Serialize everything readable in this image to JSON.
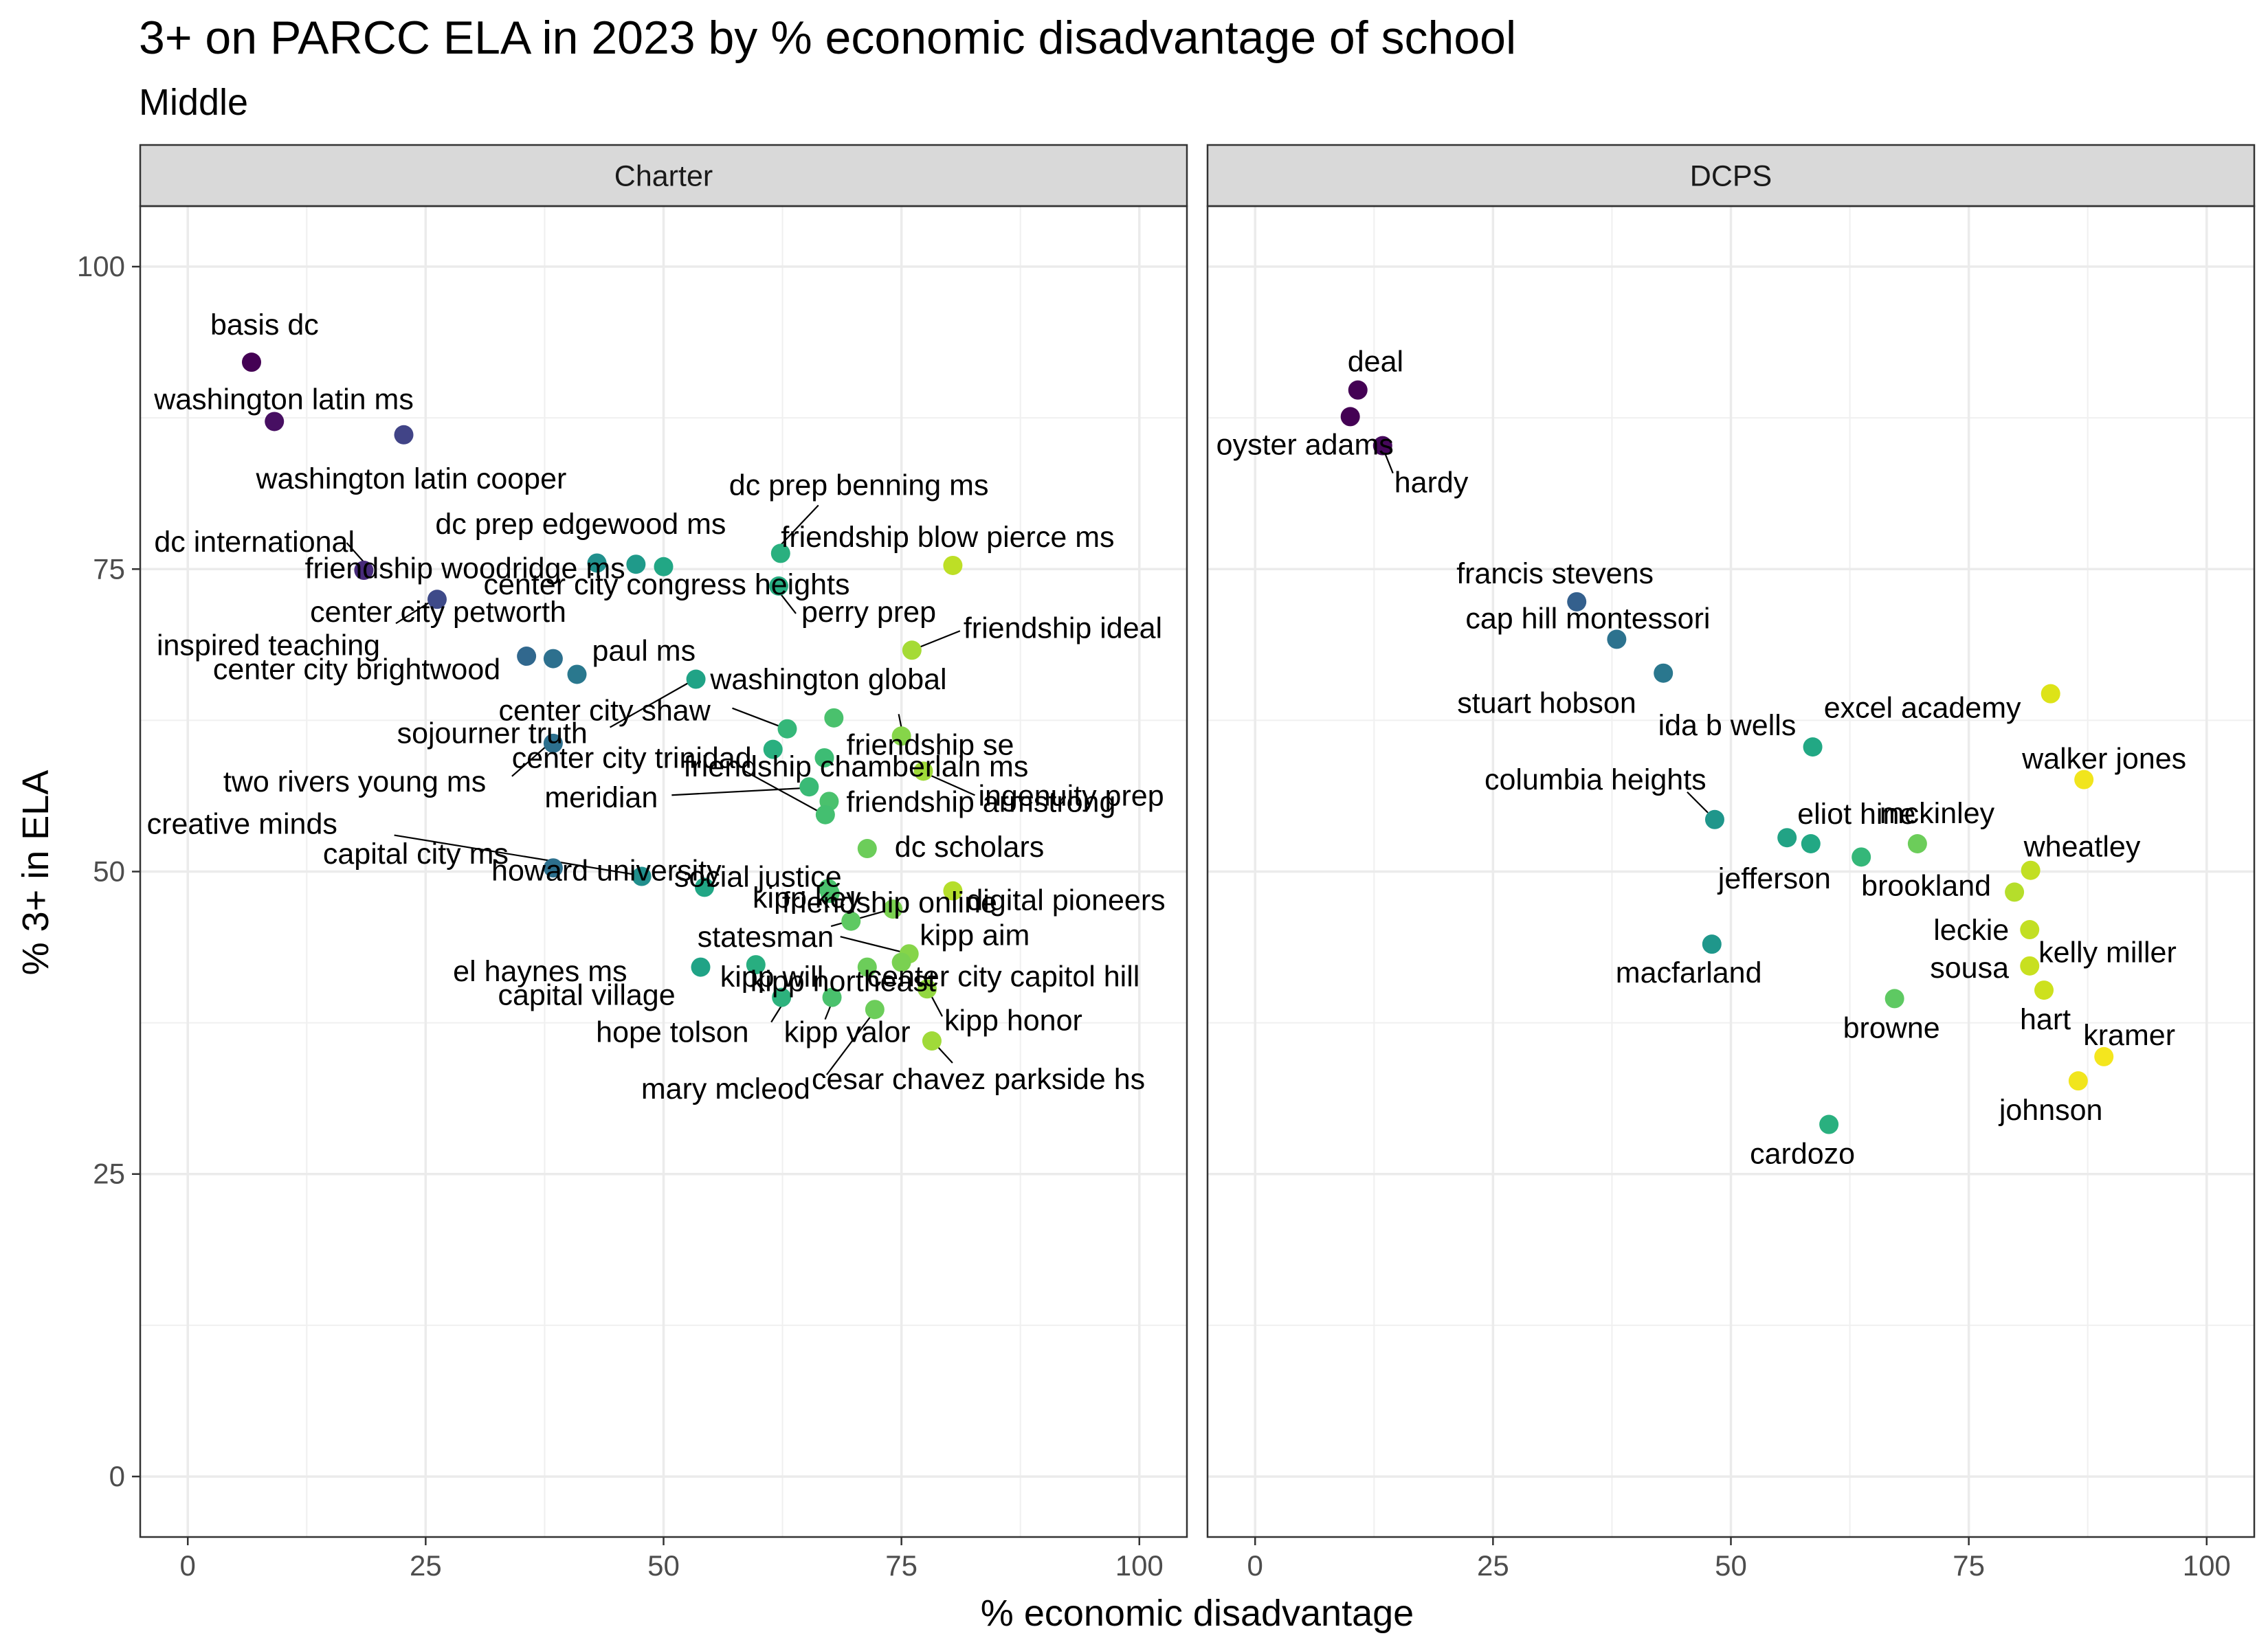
{
  "chart_data": {
    "type": "scatter",
    "title": "3+ on PARCC ELA in 2023 by % economic disadvantage of school",
    "subtitle": "Middle",
    "xlabel": "% economic disadvantage",
    "ylabel": "% 3+ in ELA",
    "xlim": [
      -5,
      105
    ],
    "ylim": [
      -5,
      105
    ],
    "x_ticks": [
      0,
      25,
      50,
      75,
      100
    ],
    "y_ticks": [
      0,
      25,
      50,
      75,
      100
    ],
    "grid": true,
    "color_scale": "viridis",
    "facets": [
      {
        "name": "Charter",
        "points": [
          {
            "label": "basis dc",
            "x": 6.7,
            "y": 92.1,
            "color": "#440154"
          },
          {
            "label": "washington latin ms",
            "x": 9.1,
            "y": 87.2,
            "color": "#470f62"
          },
          {
            "label": "washington latin cooper",
            "x": 22.7,
            "y": 86.1,
            "color": "#414487"
          },
          {
            "label": "dc international",
            "x": 18.5,
            "y": 74.9,
            "color": "#472a7a"
          },
          {
            "label": "friendship woodridge ms",
            "x": 43.0,
            "y": 75.5,
            "color": "#21908d"
          },
          {
            "label": "inspired teaching",
            "x": 26.2,
            "y": 72.5,
            "color": "#3e4a89"
          },
          {
            "label": "dc prep edgewood ms",
            "x": 47.1,
            "y": 75.4,
            "color": "#1f9a8a"
          },
          {
            "label": "center city congress heights",
            "x": 50.0,
            "y": 75.2,
            "color": "#22a785"
          },
          {
            "label": "dc prep benning ms",
            "x": 62.3,
            "y": 76.3,
            "color": "#2ab07f"
          },
          {
            "label": "friendship blow pierce ms",
            "x": 80.4,
            "y": 75.3,
            "color": "#bddf26"
          },
          {
            "label": "perry prep",
            "x": 62.1,
            "y": 73.6,
            "color": "#27ad81"
          },
          {
            "label": "friendship ideal",
            "x": 76.1,
            "y": 68.3,
            "color": "#a5db36"
          },
          {
            "label": "center city petworth",
            "x": 35.6,
            "y": 67.8,
            "color": "#31688e"
          },
          {
            "label": "center city brightwood",
            "x": 38.4,
            "y": 67.6,
            "color": "#2d708e"
          },
          {
            "label": "paul ms",
            "x": 40.9,
            "y": 66.3,
            "color": "#2a788e"
          },
          {
            "label": "sojourner truth",
            "x": 53.4,
            "y": 65.9,
            "color": "#20a386"
          },
          {
            "label": "washington global",
            "x": 67.9,
            "y": 62.7,
            "color": "#4ac16d"
          },
          {
            "label": "center city shaw",
            "x": 63.0,
            "y": 61.8,
            "color": "#35b779"
          },
          {
            "label": "friendship se",
            "x": 75.0,
            "y": 61.2,
            "color": "#86d549"
          },
          {
            "label": "two rivers young ms",
            "x": 38.4,
            "y": 60.6,
            "color": "#2d708e"
          },
          {
            "label": "center city trinidad",
            "x": 61.5,
            "y": 60.1,
            "color": "#29af7f"
          },
          {
            "label": "friendship chamberlain ms",
            "x": 66.9,
            "y": 59.4,
            "color": "#3dbc74"
          },
          {
            "label": "ingenuity prep",
            "x": 77.3,
            "y": 58.3,
            "color": "#a0da39"
          },
          {
            "label": "meridian",
            "x": 65.3,
            "y": 57.0,
            "color": "#3aba76"
          },
          {
            "label": "friendship armstrong",
            "x": 67.4,
            "y": 55.8,
            "color": "#4ac16d"
          },
          {
            "label": "social justice",
            "x": 67.0,
            "y": 54.7,
            "color": "#44bf70"
          },
          {
            "label": "dc scholars",
            "x": 71.4,
            "y": 51.9,
            "color": "#6ccd5a"
          },
          {
            "label": "capital city ms",
            "x": 38.4,
            "y": 50.3,
            "color": "#2d708e"
          },
          {
            "label": "creative minds",
            "x": 47.7,
            "y": 49.6,
            "color": "#218f8d"
          },
          {
            "label": "howard university",
            "x": 54.3,
            "y": 48.7,
            "color": "#21a685"
          },
          {
            "label": "kipp key",
            "x": 67.3,
            "y": 48.6,
            "color": "#4ac16d"
          },
          {
            "label": "friendship online",
            "x": 67.5,
            "y": 48.2,
            "color": "#4ac16d"
          },
          {
            "label": "digital pioneers",
            "x": 80.4,
            "y": 48.4,
            "color": "#b5de2b"
          },
          {
            "label": "el haynes ms",
            "x": 74.1,
            "y": 46.9,
            "color": "#7ad151"
          },
          {
            "label": "kipp aim",
            "x": 69.7,
            "y": 45.9,
            "color": "#5ec962"
          },
          {
            "label": "kipp will",
            "x": 75.8,
            "y": 43.2,
            "color": "#86d549"
          },
          {
            "label": "statesman",
            "x": 59.7,
            "y": 42.3,
            "color": "#28ae80"
          },
          {
            "label": "capital village",
            "x": 53.9,
            "y": 42.1,
            "color": "#20a386"
          },
          {
            "label": "kipp northeast",
            "x": 71.4,
            "y": 42.1,
            "color": "#6ccd5a"
          },
          {
            "label": "center city capitol hill",
            "x": 75.0,
            "y": 42.5,
            "color": "#7ad151"
          },
          {
            "label": "kipp honor",
            "x": 77.7,
            "y": 40.3,
            "color": "#93d741"
          },
          {
            "label": "hope tolson",
            "x": 62.4,
            "y": 39.6,
            "color": "#2db27d"
          },
          {
            "label": "kipp valor",
            "x": 67.7,
            "y": 39.6,
            "color": "#4ac16d"
          },
          {
            "label": "mary mcleod",
            "x": 72.2,
            "y": 38.6,
            "color": "#6ccd5a"
          },
          {
            "label": "cesar chavez parkside hs",
            "x": 78.2,
            "y": 36.0,
            "color": "#a0da39"
          }
        ]
      },
      {
        "name": "DCPS",
        "points": [
          {
            "label": "deal",
            "x": 10.8,
            "y": 89.8,
            "color": "#440154"
          },
          {
            "label": "oyster adams",
            "x": 10.0,
            "y": 87.6,
            "color": "#440154"
          },
          {
            "label": "hardy",
            "x": 13.4,
            "y": 85.2,
            "color": "#46085c"
          },
          {
            "label": "francis stevens",
            "x": 33.8,
            "y": 72.3,
            "color": "#34608d"
          },
          {
            "label": "cap hill montessori",
            "x": 38.0,
            "y": 69.2,
            "color": "#2c728e"
          },
          {
            "label": "stuart hobson",
            "x": 42.9,
            "y": 66.4,
            "color": "#2a778e"
          },
          {
            "label": "excel academy",
            "x": 83.6,
            "y": 64.7,
            "color": "#dde318"
          },
          {
            "label": "ida b wells",
            "x": 58.6,
            "y": 60.3,
            "color": "#22a884"
          },
          {
            "label": "walker jones",
            "x": 87.1,
            "y": 57.6,
            "color": "#f1e51d"
          },
          {
            "label": "columbia heights",
            "x": 48.3,
            "y": 54.3,
            "color": "#1f968b"
          },
          {
            "label": "eliot hine",
            "x": 55.9,
            "y": 52.8,
            "color": "#22a385"
          },
          {
            "label": "jefferson",
            "x": 58.4,
            "y": 52.3,
            "color": "#22a884"
          },
          {
            "label": "mckinley",
            "x": 69.6,
            "y": 52.3,
            "color": "#6ccd5a"
          },
          {
            "label": "brookland",
            "x": 63.7,
            "y": 51.2,
            "color": "#35b779"
          },
          {
            "label": "wheatley",
            "x": 81.5,
            "y": 50.1,
            "color": "#c2df23"
          },
          {
            "label": "kelly miller",
            "x": 79.8,
            "y": 48.3,
            "color": "#b5de2b"
          },
          {
            "label": "leckie",
            "x": 81.4,
            "y": 45.2,
            "color": "#c2df23"
          },
          {
            "label": "macfarland",
            "x": 48.0,
            "y": 44.0,
            "color": "#1f978b"
          },
          {
            "label": "sousa",
            "x": 81.4,
            "y": 42.2,
            "color": "#c8e020"
          },
          {
            "label": "hart",
            "x": 82.9,
            "y": 40.2,
            "color": "#cde11d"
          },
          {
            "label": "browne",
            "x": 67.2,
            "y": 39.5,
            "color": "#5ec962"
          },
          {
            "label": "kramer",
            "x": 89.2,
            "y": 34.7,
            "color": "#f4e61e"
          },
          {
            "label": "johnson",
            "x": 86.5,
            "y": 32.7,
            "color": "#f1e51d"
          },
          {
            "label": "cardozo",
            "x": 60.3,
            "y": 29.1,
            "color": "#2ab07f"
          }
        ]
      }
    ]
  }
}
